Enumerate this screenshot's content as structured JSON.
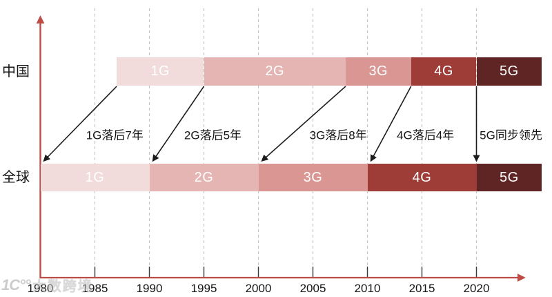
{
  "watermark": {
    "logo": "1C°°",
    "text": "大数跨境"
  },
  "chart_data": {
    "type": "bar",
    "subtype": "horizontal-timeline-comparison",
    "title": "",
    "grid": "vertical-dashed",
    "legend": null,
    "x_range": [
      1980,
      2026
    ],
    "x_ticks": [
      1980,
      1985,
      1990,
      1995,
      2000,
      2005,
      2010,
      2015,
      2020
    ],
    "rows": [
      {
        "label": "中国",
        "segments": [
          {
            "name": "1G",
            "start": 1987,
            "end": 1995
          },
          {
            "name": "2G",
            "start": 1995,
            "end": 2008
          },
          {
            "name": "3G",
            "start": 2008,
            "end": 2014
          },
          {
            "name": "4G",
            "start": 2014,
            "end": 2020
          },
          {
            "name": "5G",
            "start": 2020,
            "end": 2026
          }
        ]
      },
      {
        "label": "全球",
        "segments": [
          {
            "name": "1G",
            "start": 1980,
            "end": 1990
          },
          {
            "name": "2G",
            "start": 1990,
            "end": 2000
          },
          {
            "name": "3G",
            "start": 2000,
            "end": 2010
          },
          {
            "name": "4G",
            "start": 2010,
            "end": 2020
          },
          {
            "name": "5G",
            "start": 2020,
            "end": 2026
          }
        ]
      }
    ],
    "annotations": [
      {
        "text": "1G落后7年",
        "lag_years": 7
      },
      {
        "text": "2G落后5年",
        "lag_years": 5
      },
      {
        "text": "3G落后8年",
        "lag_years": 8
      },
      {
        "text": "4G落后4年",
        "lag_years": 4
      },
      {
        "text": "5G同步领先",
        "lag_years": 0
      }
    ],
    "colors": {
      "1G": "#f2dcdb",
      "2G": "#e5b5b3",
      "3G": "#d99693",
      "4G": "#9e3c38",
      "5G": "#5f2524",
      "axis": "#bd4b46",
      "arrow": "#1c1c1c",
      "gridline": "#c4c4c4",
      "tick": "#3a3a3a",
      "bar_text": "#ffffff",
      "text": "#141414"
    }
  }
}
